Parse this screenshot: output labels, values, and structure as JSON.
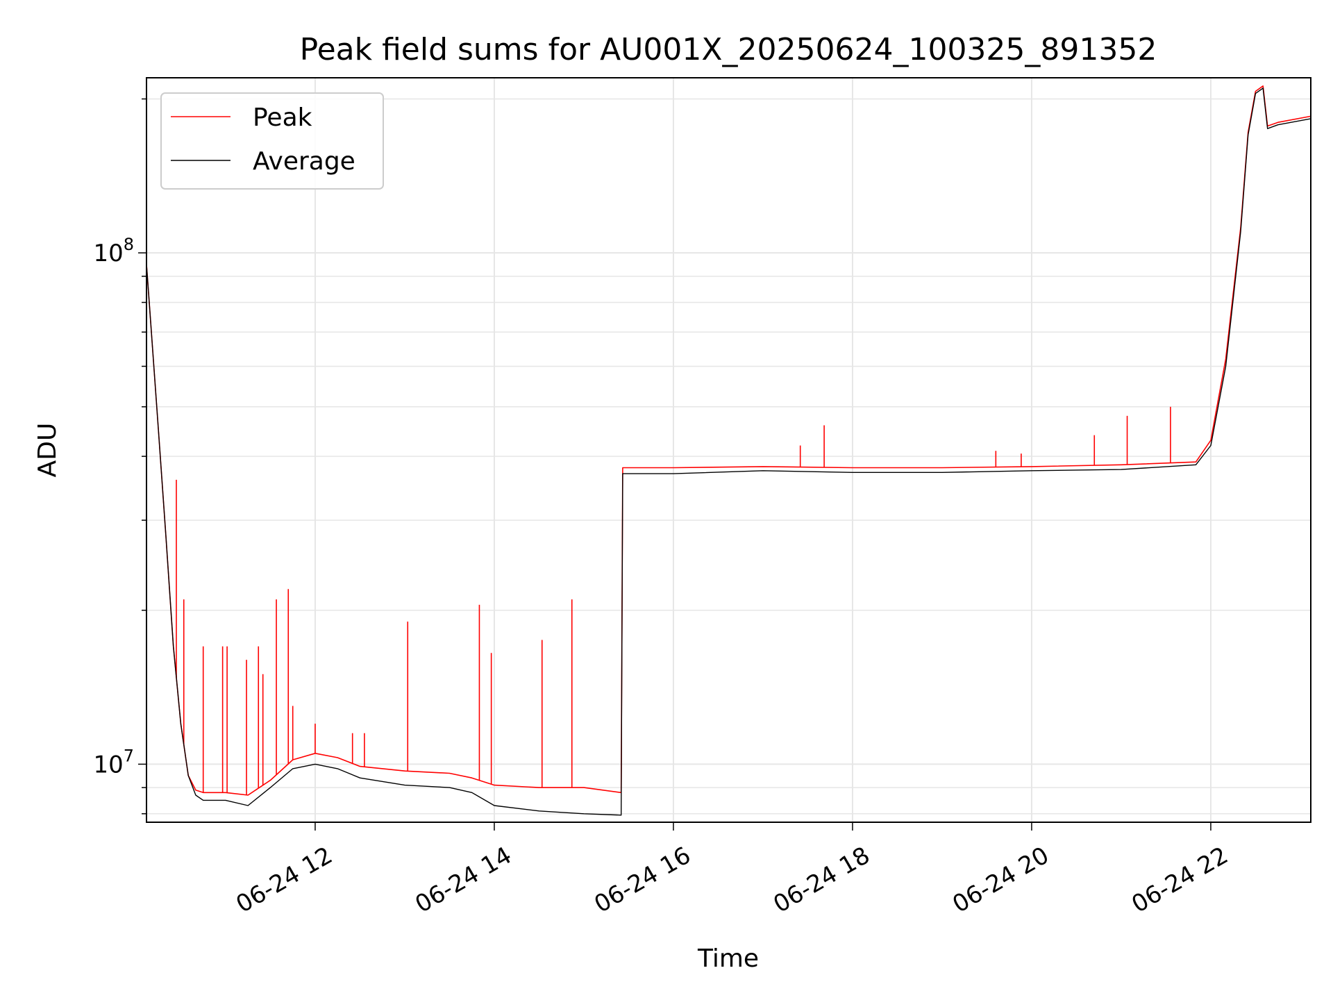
{
  "chart_data": {
    "type": "line",
    "title": "Peak field sums for AU001X_20250624_100325_891352",
    "xlabel": "Time",
    "ylabel": "ADU",
    "yscale": "log",
    "ylim": [
      7700000,
      220000000
    ],
    "xlim": [
      "06-24 10:07",
      "06-24 23:07"
    ],
    "grid": true,
    "legend": {
      "placement": "top-left",
      "entries": [
        "Peak",
        "Average"
      ]
    },
    "x_ticks": [
      "06-24 12",
      "06-24 14",
      "06-24 16",
      "06-24 18",
      "06-24 20",
      "06-24 22"
    ],
    "y_ticks": [
      {
        "base": "10",
        "exp": "7",
        "value": 10000000
      },
      {
        "base": "10",
        "exp": "8",
        "value": 100000000
      }
    ],
    "colors": {
      "Peak": "#ff0000",
      "Average": "#000000"
    },
    "series": [
      {
        "name": "Average",
        "x": [
          "06-24 10:07",
          "06-24 10:10",
          "06-24 10:15",
          "06-24 10:20",
          "06-24 10:25",
          "06-24 10:30",
          "06-24 10:35",
          "06-24 10:40",
          "06-24 10:45",
          "06-24 11:00",
          "06-24 11:15",
          "06-24 11:30",
          "06-24 11:45",
          "06-24 12:00",
          "06-24 12:15",
          "06-24 12:30",
          "06-24 13:00",
          "06-24 13:30",
          "06-24 13:45",
          "06-24 14:00",
          "06-24 14:30",
          "06-24 15:00",
          "06-24 15:25",
          "06-24 15:26",
          "06-24 15:30",
          "06-24 16:00",
          "06-24 17:00",
          "06-24 18:00",
          "06-24 19:00",
          "06-24 20:00",
          "06-24 21:00",
          "06-24 21:50",
          "06-24 22:00",
          "06-24 22:10",
          "06-24 22:20",
          "06-24 22:25",
          "06-24 22:30",
          "06-24 22:35",
          "06-24 22:38",
          "06-24 22:45",
          "06-24 23:07"
        ],
        "y": [
          95000000,
          72000000,
          45000000,
          28000000,
          17000000,
          12000000,
          9500000,
          8700000,
          8500000,
          8500000,
          8300000,
          9000000,
          9800000,
          10000000,
          9800000,
          9400000,
          9100000,
          9000000,
          8800000,
          8300000,
          8100000,
          8000000,
          7950000,
          37000000,
          37000000,
          37000000,
          37500000,
          37200000,
          37200000,
          37500000,
          37700000,
          38500000,
          42000000,
          60000000,
          110000000,
          170000000,
          205000000,
          210000000,
          175000000,
          178000000,
          183000000
        ]
      },
      {
        "name": "Peak",
        "x": [
          "06-24 10:07",
          "06-24 10:10",
          "06-24 10:15",
          "06-24 10:20",
          "06-24 10:25",
          "06-24 10:30",
          "06-24 10:35",
          "06-24 10:40",
          "06-24 10:45",
          "06-24 11:00",
          "06-24 11:15",
          "06-24 11:30",
          "06-24 11:45",
          "06-24 12:00",
          "06-24 12:15",
          "06-24 12:30",
          "06-24 13:00",
          "06-24 13:30",
          "06-24 13:45",
          "06-24 14:00",
          "06-24 14:30",
          "06-24 15:00",
          "06-24 15:25",
          "06-24 15:26",
          "06-24 15:30",
          "06-24 16:00",
          "06-24 17:00",
          "06-24 18:00",
          "06-24 19:00",
          "06-24 20:00",
          "06-24 21:00",
          "06-24 21:50",
          "06-24 22:00",
          "06-24 22:10",
          "06-24 22:20",
          "06-24 22:25",
          "06-24 22:30",
          "06-24 22:35",
          "06-24 22:38",
          "06-24 22:45",
          "06-24 23:07"
        ],
        "y": [
          95000000,
          72000000,
          45000000,
          28000000,
          17000000,
          12000000,
          9500000,
          8900000,
          8800000,
          8800000,
          8700000,
          9300000,
          10200000,
          10500000,
          10300000,
          9900000,
          9700000,
          9600000,
          9400000,
          9100000,
          9000000,
          9000000,
          8800000,
          38000000,
          38000000,
          38000000,
          38200000,
          38000000,
          38000000,
          38200000,
          38500000,
          39000000,
          43000000,
          62000000,
          112000000,
          172000000,
          207000000,
          212000000,
          177000000,
          180000000,
          185000000
        ]
      }
    ],
    "peak_spikes": {
      "x": [
        "06-24 10:27",
        "06-24 10:32",
        "06-24 10:45",
        "06-24 10:58",
        "06-24 11:01",
        "06-24 11:14",
        "06-24 11:22",
        "06-24 11:25",
        "06-24 11:34",
        "06-24 11:42",
        "06-24 11:45",
        "06-24 12:00",
        "06-24 12:25",
        "06-24 12:33",
        "06-24 13:02",
        "06-24 13:50",
        "06-24 13:58",
        "06-24 14:32",
        "06-24 14:52",
        "06-24 17:25",
        "06-24 17:41",
        "06-24 19:36",
        "06-24 19:53",
        "06-24 20:42",
        "06-24 21:04",
        "06-24 21:33"
      ],
      "y": [
        36000000,
        21000000,
        17000000,
        17000000,
        17000000,
        16000000,
        17000000,
        15000000,
        21000000,
        22000000,
        13000000,
        12000000,
        11500000,
        11500000,
        19000000,
        20500000,
        16500000,
        17500000,
        21000000,
        42000000,
        46000000,
        41000000,
        40500000,
        44000000,
        48000000,
        50000000
      ]
    }
  }
}
